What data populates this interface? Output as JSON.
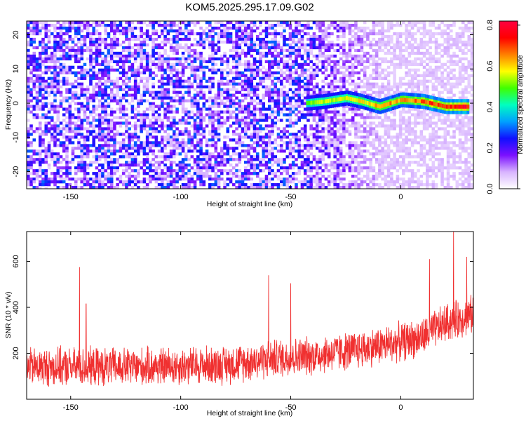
{
  "title": "KOM5.2025.295.17.09.G02",
  "chart_data": [
    {
      "type": "heatmap",
      "name": "spectrogram",
      "xlabel": "Height of straight line (km)",
      "ylabel": "Frequency (Hz)",
      "xlim": [
        -170,
        33
      ],
      "ylim": [
        -25,
        24
      ],
      "xticks": [
        -150,
        -100,
        -50,
        0
      ],
      "yticks": [
        -20,
        -10,
        0,
        10,
        20
      ],
      "colorbar": {
        "label": "Normalized spectral amplitude",
        "range": [
          0.0,
          0.82
        ],
        "ticks": [
          0.0,
          0.2,
          0.4,
          0.6,
          0.8
        ],
        "tick_labels": [
          "0.0",
          "0.2",
          "0.4",
          "0.6",
          "0.8"
        ],
        "colors": [
          "#ffffff",
          "#d8b4ff",
          "#7b10ff",
          "#1010ff",
          "#00a0ff",
          "#00ffc0",
          "#40ff00",
          "#ffff00",
          "#ff8000",
          "#ff0000",
          "#ff0040"
        ]
      },
      "signal_track": {
        "x": [
          -43,
          -35,
          -25,
          -18,
          -10,
          -5,
          0,
          10,
          20,
          30
        ],
        "freq_hz": [
          0,
          0.5,
          1.5,
          0.5,
          -1,
          0,
          1,
          0.5,
          -1,
          -1
        ],
        "peak_amplitude": 0.82
      },
      "background_amplitude_range": [
        0.05,
        0.3
      ]
    },
    {
      "type": "line",
      "name": "snr",
      "xlabel": "Height of straight line (km)",
      "ylabel": "SNR (10 * v/v)",
      "xlim": [
        -170,
        33
      ],
      "ylim": [
        0,
        730
      ],
      "xticks": [
        -150,
        -100,
        -50,
        0
      ],
      "yticks": [
        200,
        400,
        600
      ],
      "color": "#f03030",
      "trend": {
        "x": [
          -170,
          -120,
          -80,
          -60,
          -40,
          -20,
          0,
          10,
          20,
          33
        ],
        "y": [
          140,
          140,
          150,
          175,
          190,
          215,
          250,
          270,
          330,
          370
        ]
      },
      "noise_amplitude": 80,
      "spikes": [
        {
          "x": -146,
          "y": 575
        },
        {
          "x": -143,
          "y": 415
        },
        {
          "x": -60,
          "y": 540
        },
        {
          "x": -50,
          "y": 505
        },
        {
          "x": 13,
          "y": 610
        },
        {
          "x": 24,
          "y": 730
        },
        {
          "x": 30,
          "y": 620
        }
      ]
    }
  ]
}
